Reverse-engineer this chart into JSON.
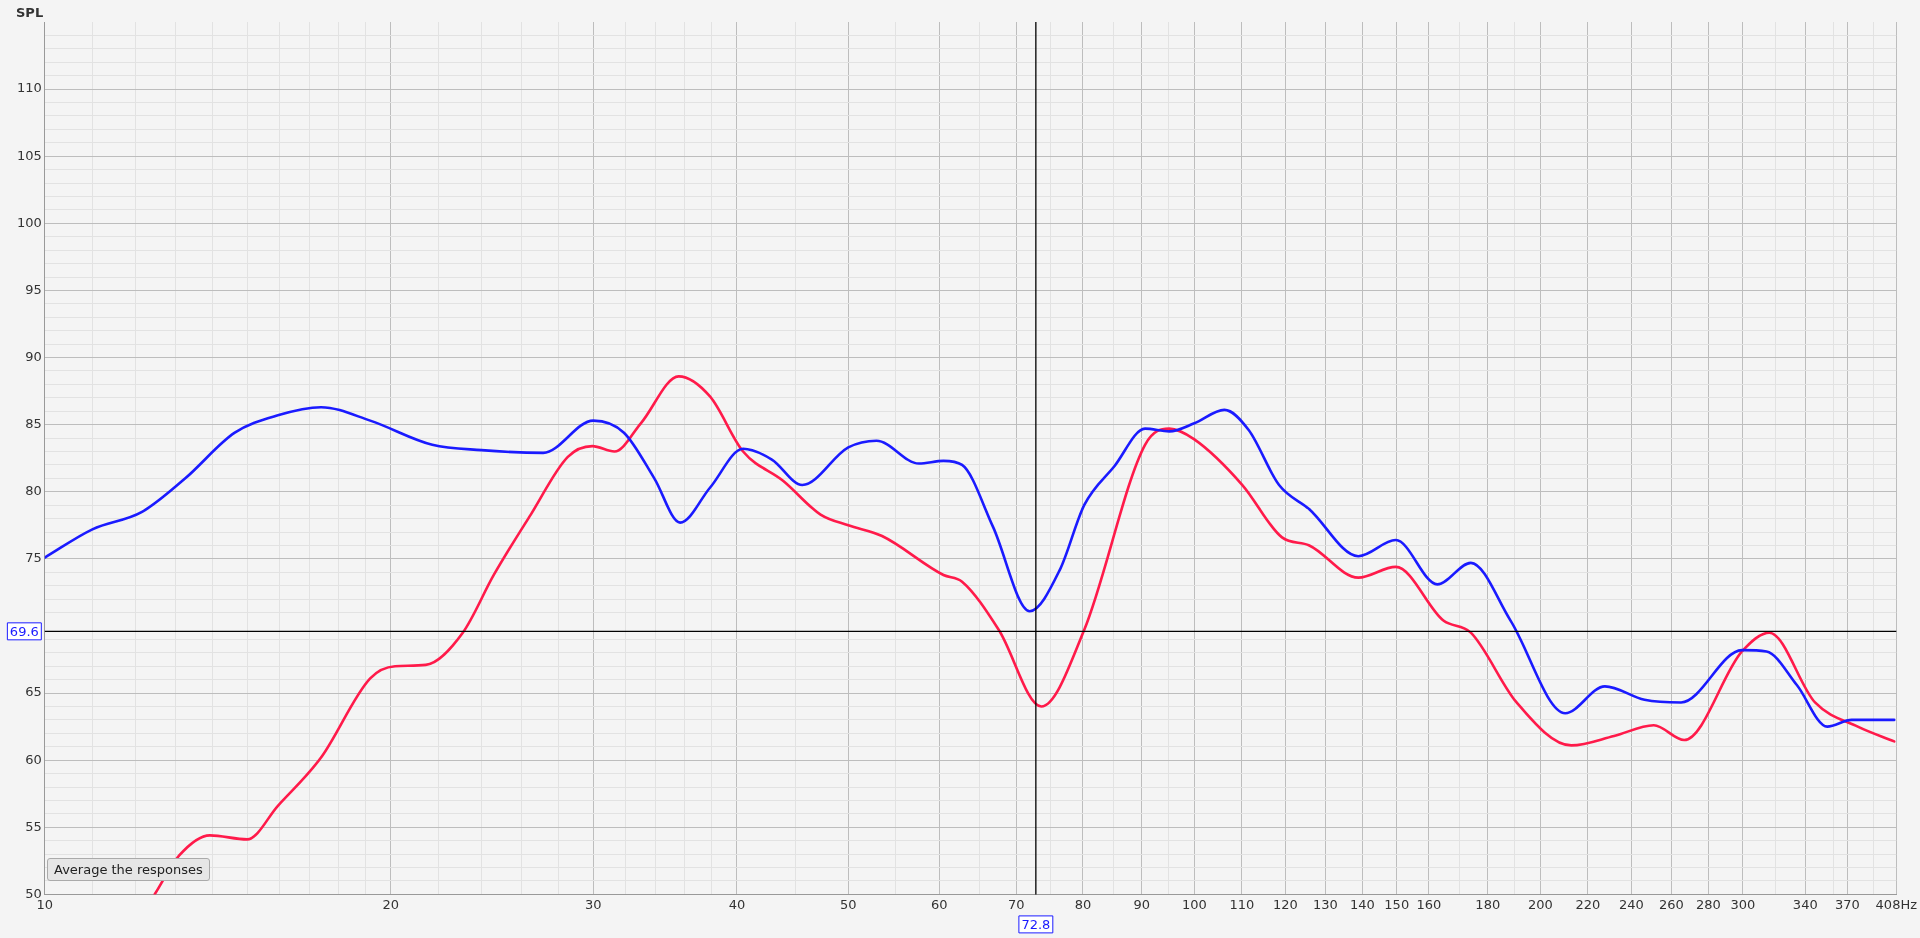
{
  "chart_data": {
    "type": "line",
    "ylabel": "SPL",
    "log": "x",
    "grid": true,
    "marker": "none",
    "line_style": "solid",
    "xlim": [
      10,
      408
    ],
    "ylim": [
      50,
      115
    ],
    "xticks": [
      10,
      {
        "value": 11,
        "label": null
      },
      {
        "value": 12,
        "label": null
      },
      {
        "value": 13,
        "label": null
      },
      {
        "value": 14,
        "label": null
      },
      {
        "value": 15,
        "label": null
      },
      {
        "value": 16,
        "label": null
      },
      {
        "value": 17,
        "label": null
      },
      {
        "value": 18,
        "label": null
      },
      {
        "value": 19,
        "label": null
      },
      20,
      {
        "value": 22,
        "label": null
      },
      {
        "value": 24,
        "label": null
      },
      {
        "value": 26,
        "label": null
      },
      {
        "value": 28,
        "label": null
      },
      30,
      {
        "value": 32,
        "label": null
      },
      {
        "value": 34,
        "label": null
      },
      {
        "value": 36,
        "label": null
      },
      {
        "value": 38,
        "label": null
      },
      40,
      {
        "value": 45,
        "label": null
      },
      50,
      {
        "value": 55,
        "label": null
      },
      60,
      {
        "value": 65,
        "label": null
      },
      70,
      {
        "value": 75,
        "label": null
      },
      80,
      {
        "value": 85,
        "label": null
      },
      90,
      {
        "value": 95,
        "label": null
      },
      100,
      110,
      120,
      130,
      140,
      150,
      160,
      {
        "value": 170,
        "label": null
      },
      180,
      {
        "value": 190,
        "label": null
      },
      200,
      220,
      240,
      260,
      280,
      300,
      {
        "value": 320,
        "label": null
      },
      340,
      {
        "value": 360,
        "label": null
      },
      370,
      {
        "value": 390,
        "label": null
      },
      {
        "value": 408,
        "label": "408Hz"
      }
    ],
    "yticks": [
      50,
      {
        "value": 51,
        "label": null
      },
      {
        "value": 52,
        "label": null
      },
      {
        "value": 53,
        "label": null
      },
      {
        "value": 54,
        "label": null
      },
      55,
      {
        "value": 56,
        "label": null
      },
      {
        "value": 57,
        "label": null
      },
      {
        "value": 58,
        "label": null
      },
      {
        "value": 59,
        "label": null
      },
      60,
      {
        "value": 61,
        "label": null
      },
      {
        "value": 62,
        "label": null
      },
      {
        "value": 63,
        "label": null
      },
      {
        "value": 64,
        "label": null
      },
      65,
      {
        "value": 66,
        "label": null
      },
      {
        "value": 67,
        "label": null
      },
      {
        "value": 68,
        "label": null
      },
      {
        "value": 69,
        "label": null
      },
      {
        "value": 71,
        "label": null
      },
      {
        "value": 72,
        "label": null
      },
      {
        "value": 73,
        "label": null
      },
      {
        "value": 74,
        "label": null
      },
      75,
      {
        "value": 76,
        "label": null
      },
      {
        "value": 77,
        "label": null
      },
      {
        "value": 78,
        "label": null
      },
      {
        "value": 79,
        "label": null
      },
      80,
      {
        "value": 81,
        "label": null
      },
      {
        "value": 82,
        "label": null
      },
      {
        "value": 83,
        "label": null
      },
      {
        "value": 84,
        "label": null
      },
      85,
      {
        "value": 86,
        "label": null
      },
      {
        "value": 87,
        "label": null
      },
      {
        "value": 88,
        "label": null
      },
      {
        "value": 89,
        "label": null
      },
      90,
      {
        "value": 91,
        "label": null
      },
      {
        "value": 92,
        "label": null
      },
      {
        "value": 93,
        "label": null
      },
      {
        "value": 94,
        "label": null
      },
      95,
      {
        "value": 96,
        "label": null
      },
      {
        "value": 97,
        "label": null
      },
      {
        "value": 98,
        "label": null
      },
      {
        "value": 99,
        "label": null
      },
      100,
      {
        "value": 101,
        "label": null
      },
      {
        "value": 102,
        "label": null
      },
      {
        "value": 103,
        "label": null
      },
      {
        "value": 104,
        "label": null
      },
      105,
      {
        "value": 106,
        "label": null
      },
      {
        "value": 107,
        "label": null
      },
      {
        "value": 108,
        "label": null
      },
      {
        "value": 109,
        "label": null
      },
      110,
      {
        "value": 111,
        "label": null
      },
      {
        "value": 112,
        "label": null
      },
      {
        "value": 113,
        "label": null
      },
      {
        "value": 114,
        "label": null
      }
    ],
    "ref_lines": [
      {
        "axis": "x",
        "value": 72.8,
        "label": "72.8",
        "color": "#000000"
      },
      {
        "axis": "y",
        "value": 69.6,
        "label": "69.6",
        "color": "#000000"
      }
    ],
    "annotations": [
      "Average the responses"
    ],
    "series": [
      {
        "color": "#1a1aff",
        "x": [
          10,
          11.0,
          12.15,
          13.25,
          14.63,
          15.95,
          17.39,
          19.19,
          21.73,
          23.98,
          27.14,
          30,
          31.9,
          33.9,
          35.7,
          37.9,
          40.5,
          42.9,
          45.6,
          50,
          52.9,
          57.6,
          60.5,
          62.8,
          66.8,
          71.9,
          76.4,
          80.2,
          85.2,
          90.6,
          95.1,
          100,
          106.2,
          111.5,
          118.5,
          125.9,
          138.9,
          149.7,
          162.7,
          174,
          188.4,
          210.2,
          227.6,
          246.4,
          265.1,
          299.5,
          314.6,
          334.3,
          355.3,
          373.1,
          406.3
        ],
        "values": [
          75.1,
          77.2,
          78.5,
          81.0,
          84.4,
          85.7,
          86.3,
          85.3,
          83.5,
          83.1,
          82.9,
          85.3,
          84.4,
          81.0,
          77.7,
          80.3,
          83.2,
          82.4,
          80.5,
          83.3,
          83.8,
          82.1,
          82.3,
          82.0,
          77.4,
          71.1,
          74.2,
          79.0,
          81.9,
          84.7,
          84.5,
          85.1,
          86.1,
          84.6,
          80.5,
          78.7,
          75.2,
          76.4,
          73.1,
          74.7,
          70.4,
          63.5,
          65.5,
          64.5,
          64.3,
          68.2,
          68.1,
          65.6,
          62.5,
          63.0,
          63.0
        ]
      },
      {
        "color": "#ff1a4a",
        "x": [
          12.46,
          13.09,
          13.92,
          15.0,
          15.95,
          17.39,
          19.19,
          20.17,
          21.45,
          23.1,
          24.58,
          26.47,
          28.51,
          29.95,
          31.3,
          33.0,
          35.6,
          37.9,
          40.5,
          43.9,
          47.3,
          50,
          53.5,
          60.5,
          62.8,
          67.6,
          73.6,
          80.2,
          90.6,
          95.1,
          100,
          110.1,
          119.2,
          125.9,
          138.9,
          149.7,
          164.7,
          174,
          190.7,
          212.8,
          231.8,
          251,
          266.8,
          299.5,
          316.4,
          346.7,
          377.7,
          406.3
        ],
        "values": [
          50.0,
          52.9,
          54.4,
          54.1,
          56.6,
          60.2,
          66.1,
          67.0,
          67.1,
          69.5,
          73.8,
          78.3,
          82.6,
          83.4,
          83.0,
          85.1,
          88.6,
          87.1,
          83.0,
          80.8,
          78.3,
          77.5,
          76.7,
          73.8,
          73.3,
          69.7,
          64.0,
          69.7,
          83.5,
          84.7,
          83.9,
          80.5,
          76.6,
          76.0,
          73.6,
          74.4,
          70.4,
          69.5,
          64.3,
          61.1,
          61.8,
          62.6,
          61.5,
          68.1,
          69.5,
          64.3,
          62.5,
          61.4
        ]
      }
    ]
  }
}
